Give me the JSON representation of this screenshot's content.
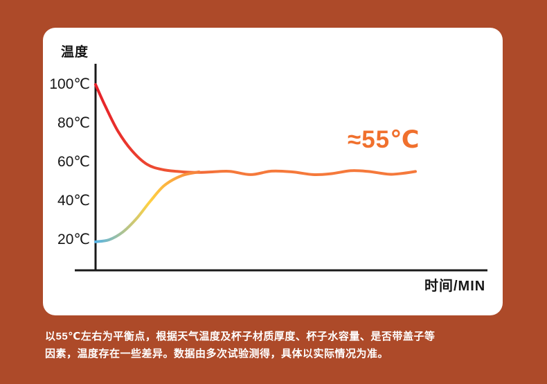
{
  "colors": {
    "background": "#ad4a29",
    "card": "#ffffff",
    "axis": "#1a1a1a",
    "accent_orange": "#f5793b",
    "hot_red": "#e62129",
    "cold_blue": "#55b3e6",
    "warm_yellow": "#ffd143",
    "annotation_orange": "#f0702d",
    "caption_text": "#ffffff"
  },
  "chart_data": {
    "type": "line",
    "title": "",
    "ylabel": "温度",
    "xlabel": "时间/MIN",
    "annotation": "≈55℃",
    "equilibrium_temp_c": 55,
    "ylim": [
      10,
      108
    ],
    "grid": false,
    "legend": "none",
    "x_unit": "min",
    "yticks": [
      {
        "label": "100℃",
        "value": 100
      },
      {
        "label": "80℃",
        "value": 80
      },
      {
        "label": "60℃",
        "value": 60
      },
      {
        "label": "40℃",
        "value": 40
      },
      {
        "label": "20℃",
        "value": 20
      }
    ],
    "series": [
      {
        "name": "hot-water-cooling",
        "description": "hot water cooling from 100C and stabilizing around 55C with small oscillations",
        "gradient": [
          {
            "offset": 0,
            "color": "#e62129"
          },
          {
            "offset": 1,
            "color": "#f5793b"
          }
        ],
        "gradient_span": [
          0,
          24
        ],
        "points": [
          [
            0,
            100
          ],
          [
            1.8,
            89
          ],
          [
            4.2,
            76
          ],
          [
            6.8,
            66
          ],
          [
            9.6,
            59
          ],
          [
            12.5,
            56.2
          ],
          [
            15.5,
            55.2
          ],
          [
            18.7,
            54.7
          ],
          [
            21.9,
            55.0
          ],
          [
            25.2,
            55.3
          ],
          [
            29.1,
            53.6
          ],
          [
            33,
            55.4
          ],
          [
            36.9,
            55.0
          ],
          [
            40.8,
            53.6
          ],
          [
            44,
            54.0
          ],
          [
            47.9,
            55.6
          ],
          [
            51.2,
            55.2
          ],
          [
            55.1,
            53.8
          ],
          [
            57.7,
            54.3
          ],
          [
            60,
            55.2
          ]
        ]
      },
      {
        "name": "cold-water-warming",
        "description": "cold water warming from about 19C up to the 55C equilibrium",
        "gradient": [
          {
            "offset": 0,
            "color": "#55b3e6"
          },
          {
            "offset": 0.5,
            "color": "#ffd143"
          },
          {
            "offset": 1,
            "color": "#f5793b"
          }
        ],
        "gradient_span": [
          0,
          20
        ],
        "points": [
          [
            0,
            19
          ],
          [
            2.5,
            20
          ],
          [
            5.1,
            24
          ],
          [
            7.7,
            31
          ],
          [
            10.3,
            40
          ],
          [
            12.9,
            48
          ],
          [
            16.1,
            53
          ],
          [
            19.4,
            55
          ]
        ]
      }
    ]
  },
  "caption": {
    "lines": [
      "以55℃左右为平衡点，根据天气温度及杯子材质厚度、杯子水容量、是否带盖子等",
      "因素，温度存在一些差异。数据由多次试验测得，具体以实际情况为准。"
    ]
  }
}
